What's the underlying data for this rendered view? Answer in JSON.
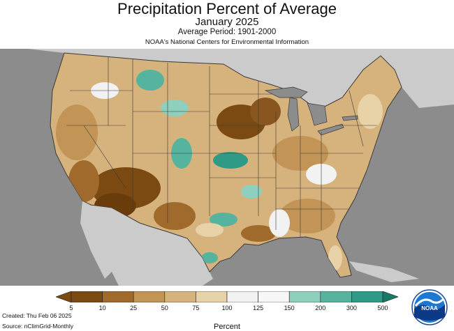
{
  "header": {
    "title": "Precipitation Percent of Average",
    "period": "January 2025",
    "average_period": "Average Period: 1901-2000",
    "agency": "NOAA's National Centers for Environmental Information"
  },
  "legend": {
    "unit_label": "Percent",
    "ticks": [
      "5",
      "10",
      "25",
      "50",
      "75",
      "100",
      "125",
      "150",
      "200",
      "300",
      "500"
    ],
    "colors": [
      "#7a4a12",
      "#a06a2c",
      "#c29556",
      "#d6b27c",
      "#e8d2a7",
      "#f2f2f2",
      "#f7f7f7",
      "#8fcfbe",
      "#55b39e",
      "#2f9a85",
      "#167a66"
    ]
  },
  "footer": {
    "created": "Created: Thu Feb 06 2025",
    "source": "Source: nClimGrid-Monthly"
  },
  "logo": {
    "text": "NOAA"
  },
  "map_colors": {
    "ocean": "#8c8c8c",
    "neighbor_land": "#cbcbcb",
    "great_lakes": "#8c8c8c",
    "state_border": "#3a3a3a"
  }
}
